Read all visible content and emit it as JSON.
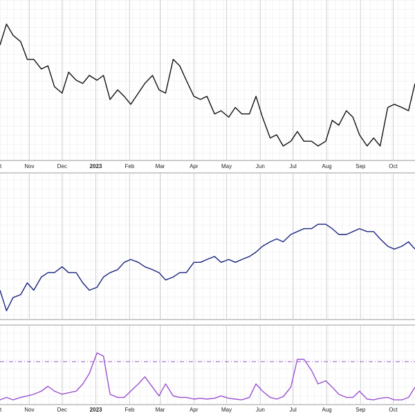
{
  "chart_data": [
    {
      "type": "line",
      "color": "#111111",
      "x": [
        4,
        10,
        16,
        23,
        29,
        35,
        42,
        48,
        54,
        61,
        67,
        74,
        80,
        86,
        93,
        99,
        105,
        112,
        118,
        124,
        131,
        137,
        144,
        150,
        156,
        163,
        169,
        175,
        182,
        188,
        194,
        201,
        207,
        214,
        220,
        226,
        233,
        239,
        245,
        252,
        258,
        264,
        271,
        277,
        283,
        290,
        296,
        303,
        309,
        315,
        322,
        328,
        334,
        341,
        347,
        353,
        360,
        366,
        373,
        379,
        385
      ],
      "values": [
        72,
        85,
        78,
        74,
        63,
        63,
        57,
        59,
        46,
        42,
        55,
        50,
        48,
        53,
        50,
        53,
        38,
        44,
        40,
        35,
        42,
        48,
        53,
        44,
        42,
        63,
        59,
        50,
        40,
        38,
        40,
        29,
        31,
        27,
        33,
        29,
        29,
        40,
        27,
        14,
        16,
        9,
        12,
        18,
        12,
        12,
        9,
        12,
        25,
        22,
        31,
        27,
        16,
        9,
        14,
        9,
        33,
        35,
        33,
        31,
        48
      ],
      "xlim": [
        4,
        385
      ],
      "ylim": [
        0,
        100
      ],
      "xticks": [
        {
          "value": 0,
          "label": "t"
        },
        {
          "value": 31,
          "label": "Nov"
        },
        {
          "value": 61,
          "label": "Dec"
        },
        {
          "value": 92,
          "label": "2023"
        },
        {
          "value": 123,
          "label": "Feb"
        },
        {
          "value": 151,
          "label": "Mar"
        },
        {
          "value": 182,
          "label": "Apr"
        },
        {
          "value": 212,
          "label": "May"
        },
        {
          "value": 243,
          "label": "Jun"
        },
        {
          "value": 273,
          "label": "Jul"
        },
        {
          "value": 304,
          "label": "Aug"
        },
        {
          "value": 335,
          "label": "Sep"
        },
        {
          "value": 365,
          "label": "Oct"
        }
      ]
    },
    {
      "type": "line",
      "color": "#1a237e",
      "x": [
        4,
        10,
        16,
        23,
        29,
        35,
        42,
        48,
        54,
        61,
        67,
        74,
        80,
        86,
        93,
        99,
        105,
        112,
        118,
        124,
        131,
        137,
        144,
        150,
        156,
        163,
        169,
        175,
        182,
        188,
        194,
        201,
        207,
        214,
        220,
        226,
        233,
        239,
        245,
        252,
        258,
        264,
        271,
        277,
        283,
        290,
        296,
        303,
        309,
        315,
        322,
        328,
        334,
        341,
        347,
        353,
        360,
        366,
        373,
        379,
        385
      ],
      "values": [
        20,
        6,
        15,
        17,
        25,
        20,
        29,
        32,
        32,
        36,
        32,
        32,
        25,
        20,
        22,
        29,
        32,
        34,
        39,
        41,
        39,
        36,
        34,
        32,
        27,
        29,
        32,
        32,
        39,
        39,
        41,
        43,
        39,
        41,
        39,
        41,
        43,
        46,
        50,
        53,
        55,
        53,
        58,
        60,
        62,
        62,
        65,
        65,
        62,
        58,
        58,
        60,
        62,
        60,
        60,
        55,
        50,
        48,
        50,
        53,
        48
      ],
      "xlim": [
        4,
        385
      ],
      "ylim": [
        0,
        100
      ],
      "xticks": [
        0,
        31,
        61,
        92,
        123,
        151,
        182,
        212,
        243,
        273,
        304,
        335,
        365
      ]
    },
    {
      "type": "line",
      "color": "#9b4fd0",
      "x": [
        4,
        10,
        16,
        23,
        29,
        35,
        42,
        48,
        54,
        61,
        67,
        74,
        80,
        86,
        93,
        99,
        105,
        112,
        118,
        124,
        131,
        137,
        144,
        150,
        156,
        163,
        169,
        175,
        182,
        188,
        194,
        201,
        207,
        214,
        220,
        226,
        233,
        239,
        245,
        252,
        258,
        264,
        271,
        277,
        283,
        290,
        296,
        303,
        309,
        315,
        322,
        328,
        334,
        341,
        347,
        353,
        360,
        366,
        373,
        379,
        385
      ],
      "values": [
        6,
        9,
        6,
        9,
        11,
        13,
        17,
        23,
        17,
        13,
        15,
        17,
        26,
        39,
        65,
        61,
        13,
        9,
        9,
        17,
        26,
        35,
        22,
        11,
        26,
        11,
        9,
        9,
        7,
        8,
        7,
        8,
        11,
        8,
        7,
        6,
        9,
        26,
        17,
        9,
        7,
        10,
        22,
        57,
        57,
        43,
        26,
        30,
        22,
        13,
        9,
        9,
        17,
        7,
        6,
        8,
        9,
        6,
        6,
        9,
        22
      ],
      "reference_line": 54,
      "xlim": [
        4,
        385
      ],
      "ylim": [
        0,
        100
      ],
      "xticks": [
        {
          "value": 0,
          "label": "t"
        },
        {
          "value": 31,
          "label": "Nov"
        },
        {
          "value": 61,
          "label": "Dec"
        },
        {
          "value": 92,
          "label": "2023"
        },
        {
          "value": 123,
          "label": "Feb"
        },
        {
          "value": 151,
          "label": "Mar"
        },
        {
          "value": 182,
          "label": "Apr"
        },
        {
          "value": 212,
          "label": "May"
        },
        {
          "value": 243,
          "label": "Jun"
        },
        {
          "value": 273,
          "label": "Jul"
        },
        {
          "value": 304,
          "label": "Aug"
        },
        {
          "value": 335,
          "label": "Sep"
        },
        {
          "value": 365,
          "label": "Oct"
        }
      ]
    }
  ]
}
